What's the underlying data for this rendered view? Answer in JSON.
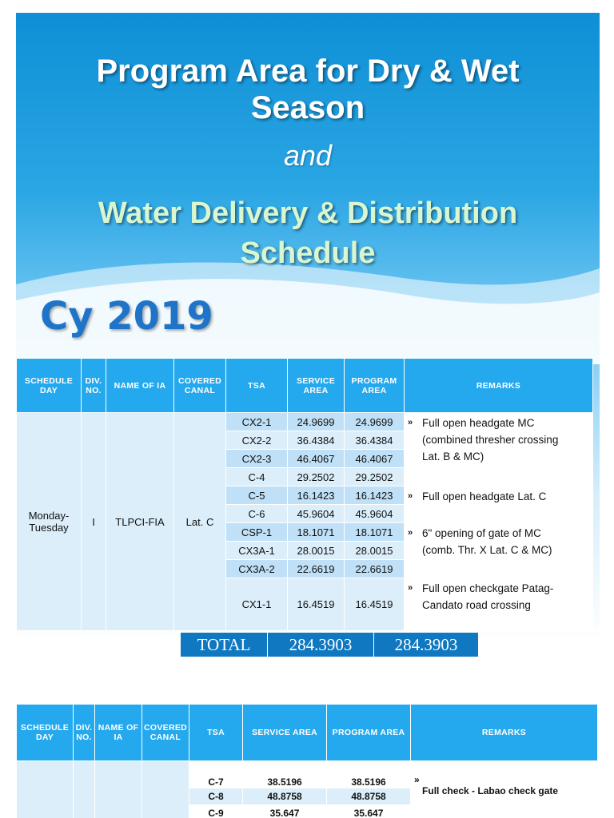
{
  "title": {
    "line1": "Program Area  for Dry & Wet",
    "line2": "Season",
    "connector": "and",
    "line3": "Water Delivery & Distribution",
    "line4": "Schedule"
  },
  "cy_label": "Cy 2019",
  "headers": {
    "schedule_day": "SCHEDULE DAY",
    "div_no": "DIV. NO.",
    "name_of_ia": "NAME OF IA",
    "covered_canal": "COVERED CANAL",
    "tsa": "TSA",
    "service_area": "SERVICE AREA",
    "program_area": "PROGRAM AREA",
    "remarks": "REMARKS"
  },
  "table1": {
    "schedule_day": "Monday-Tuesday",
    "div_no": "I",
    "name_of_ia": "TLPCI-FIA",
    "covered_canal": "Lat. C",
    "rows": [
      {
        "tsa": "CX2-1",
        "service": "24.9699",
        "program": "24.9699"
      },
      {
        "tsa": "CX2-2",
        "service": "36.4384",
        "program": "36.4384"
      },
      {
        "tsa": "CX2-3",
        "service": "46.4067",
        "program": "46.4067"
      },
      {
        "tsa": "C-4",
        "service": "29.2502",
        "program": "29.2502"
      },
      {
        "tsa": "C-5",
        "service": "16.1423",
        "program": "16.1423"
      },
      {
        "tsa": "C-6",
        "service": "45.9604",
        "program": "45.9604"
      },
      {
        "tsa": "CSP-1",
        "service": "18.1071",
        "program": "18.1071"
      },
      {
        "tsa": "CX3A-1",
        "service": "28.0015",
        "program": "28.0015"
      },
      {
        "tsa": "CX3A-2",
        "service": "22.6619",
        "program": "22.6619"
      },
      {
        "tsa": "CX1-1",
        "service": "16.4519",
        "program": "16.4519"
      }
    ],
    "bullet": "»",
    "remarks": [
      "Full open headgate MC (combined thresher crossing Lat. B & MC)",
      "Full open headgate Lat. C",
      "6\" opening of gate of MC (comb. Thr. X Lat. C & MC)",
      "Full open checkgate Patag-Candato road crossing"
    ],
    "total": {
      "label": "TOTAL",
      "service": "284.3903",
      "program": "284.3903"
    }
  },
  "table2": {
    "rows": [
      {
        "tsa": "C-7",
        "service": "38.5196",
        "program": "38.5196"
      },
      {
        "tsa": "C-8",
        "service": "48.8758",
        "program": "48.8758"
      },
      {
        "tsa": "C-9",
        "service": "35.647",
        "program": "35.647"
      }
    ],
    "bullet": "»",
    "remark": "Full check - Labao check gate"
  }
}
